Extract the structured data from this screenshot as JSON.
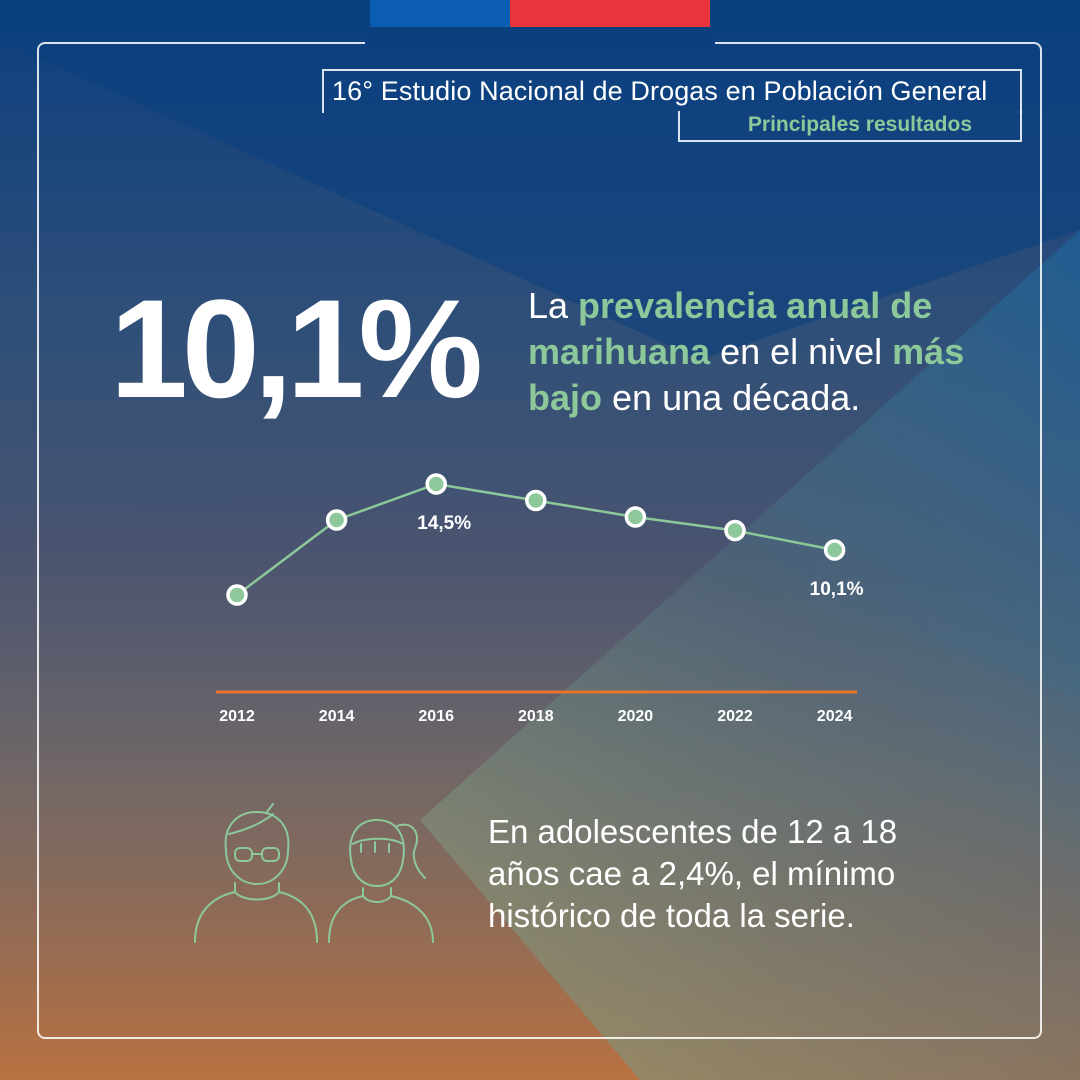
{
  "header": {
    "title": "16° Estudio Nacional de Drogas en Población General",
    "subtitle": "Principales resultados"
  },
  "highlight": {
    "value": "10,1%",
    "text_1": "La ",
    "text_2": "prevalencia anual de marihuana",
    "text_3": " en el nivel ",
    "text_4": "más bajo",
    "text_5": " en una década."
  },
  "chart_data": {
    "type": "line",
    "title": "",
    "xlabel": "",
    "ylabel": "",
    "categories": [
      "2012",
      "2014",
      "2016",
      "2018",
      "2020",
      "2022",
      "2024"
    ],
    "values": [
      7.1,
      12.1,
      14.5,
      13.4,
      12.3,
      11.4,
      10.1
    ],
    "data_labels": [
      {
        "category": "2016",
        "label": "14,5%"
      },
      {
        "category": "2024",
        "label": "10,1%"
      }
    ],
    "ylim": [
      0,
      15
    ],
    "grid": false,
    "legend": "none",
    "colors": {
      "line": "#8cc89a",
      "marker_fill": "#8cc89a",
      "marker_stroke": "#ffffff",
      "axis": "#e8742c"
    }
  },
  "teens": {
    "text": "En adolescentes de 12 a 18 años cae a 2,4%, el mínimo histórico de toda la serie.",
    "icons": [
      "boy-with-glasses-icon",
      "girl-with-ponytail-icon"
    ]
  },
  "colors": {
    "accent_green": "#8cc89a",
    "flag_blue": "#0a5db0",
    "flag_red": "#e8343c",
    "axis_orange": "#e8742c"
  }
}
